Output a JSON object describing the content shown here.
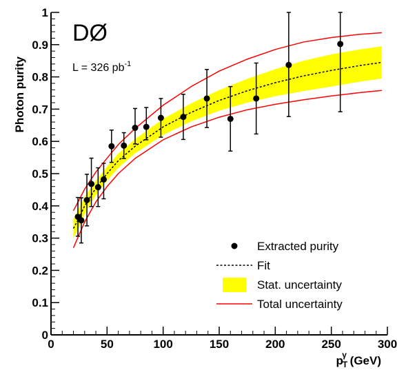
{
  "chart_data": {
    "type": "scatter",
    "title": "DØ",
    "annotation": {
      "prefix": "L = 326 pb",
      "superscript": "-1"
    },
    "xlabel": {
      "main": "p",
      "sub": "T",
      "sup": "γ",
      "unit": " (GeV)"
    },
    "ylabel": "Photon purity",
    "xlim": [
      0,
      300
    ],
    "ylim": [
      0,
      1
    ],
    "xticks": [
      0,
      50,
      100,
      150,
      200,
      250,
      300
    ],
    "yticks": [
      0,
      0.1,
      0.2,
      0.3,
      0.4,
      0.5,
      0.6,
      0.7,
      0.8,
      0.9,
      1
    ],
    "legend_position": "bottom-right",
    "colors": {
      "points": "#000000",
      "fit": "#000000",
      "stat_band": "#ffff00",
      "total_uncertainty": "#ff0000"
    },
    "series": [
      {
        "name": "Extracted purity",
        "x": [
          24,
          27,
          32,
          36,
          42,
          47,
          54,
          65,
          75,
          85,
          98,
          118,
          139,
          160,
          183,
          212,
          258
        ],
        "y": [
          0.366,
          0.355,
          0.418,
          0.468,
          0.458,
          0.482,
          0.585,
          0.587,
          0.642,
          0.645,
          0.673,
          0.676,
          0.733,
          0.67,
          0.733,
          0.837,
          0.902
        ],
        "err_low": [
          0.06,
          0.07,
          0.08,
          0.07,
          0.06,
          0.06,
          0.05,
          0.04,
          0.05,
          0.04,
          0.06,
          0.07,
          0.09,
          0.1,
          0.11,
          0.16,
          0.21
        ],
        "err_high": [
          0.06,
          0.07,
          0.08,
          0.08,
          0.06,
          0.05,
          0.05,
          0.04,
          0.06,
          0.06,
          0.06,
          0.07,
          0.09,
          0.1,
          0.11,
          0.17,
          0.23
        ]
      },
      {
        "name": "Fit",
        "x": [
          20,
          25,
          30,
          40,
          50,
          60,
          75,
          100,
          125,
          150,
          175,
          200,
          225,
          250,
          275,
          295
        ],
        "y": [
          0.33,
          0.363,
          0.4,
          0.455,
          0.5,
          0.54,
          0.585,
          0.645,
          0.69,
          0.727,
          0.757,
          0.782,
          0.803,
          0.82,
          0.835,
          0.845
        ]
      },
      {
        "name": "Stat. uncertainty",
        "x": [
          20,
          25,
          30,
          40,
          50,
          60,
          75,
          100,
          125,
          150,
          175,
          200,
          225,
          250,
          275,
          295
        ],
        "low": [
          0.3,
          0.335,
          0.375,
          0.433,
          0.478,
          0.518,
          0.563,
          0.62,
          0.662,
          0.695,
          0.72,
          0.74,
          0.756,
          0.77,
          0.785,
          0.795
        ],
        "high": [
          0.36,
          0.393,
          0.428,
          0.478,
          0.522,
          0.562,
          0.607,
          0.67,
          0.718,
          0.759,
          0.794,
          0.824,
          0.85,
          0.87,
          0.885,
          0.895
        ]
      },
      {
        "name": "Total uncertainty",
        "x": [
          20,
          25,
          30,
          40,
          50,
          60,
          75,
          100,
          125,
          150,
          175,
          200,
          225,
          250,
          275,
          295
        ],
        "low": [
          0.27,
          0.31,
          0.35,
          0.412,
          0.46,
          0.5,
          0.547,
          0.605,
          0.645,
          0.675,
          0.698,
          0.715,
          0.729,
          0.741,
          0.751,
          0.758
        ],
        "high": [
          0.385,
          0.418,
          0.452,
          0.505,
          0.548,
          0.59,
          0.64,
          0.712,
          0.77,
          0.818,
          0.855,
          0.885,
          0.908,
          0.922,
          0.932,
          0.937
        ]
      }
    ]
  }
}
